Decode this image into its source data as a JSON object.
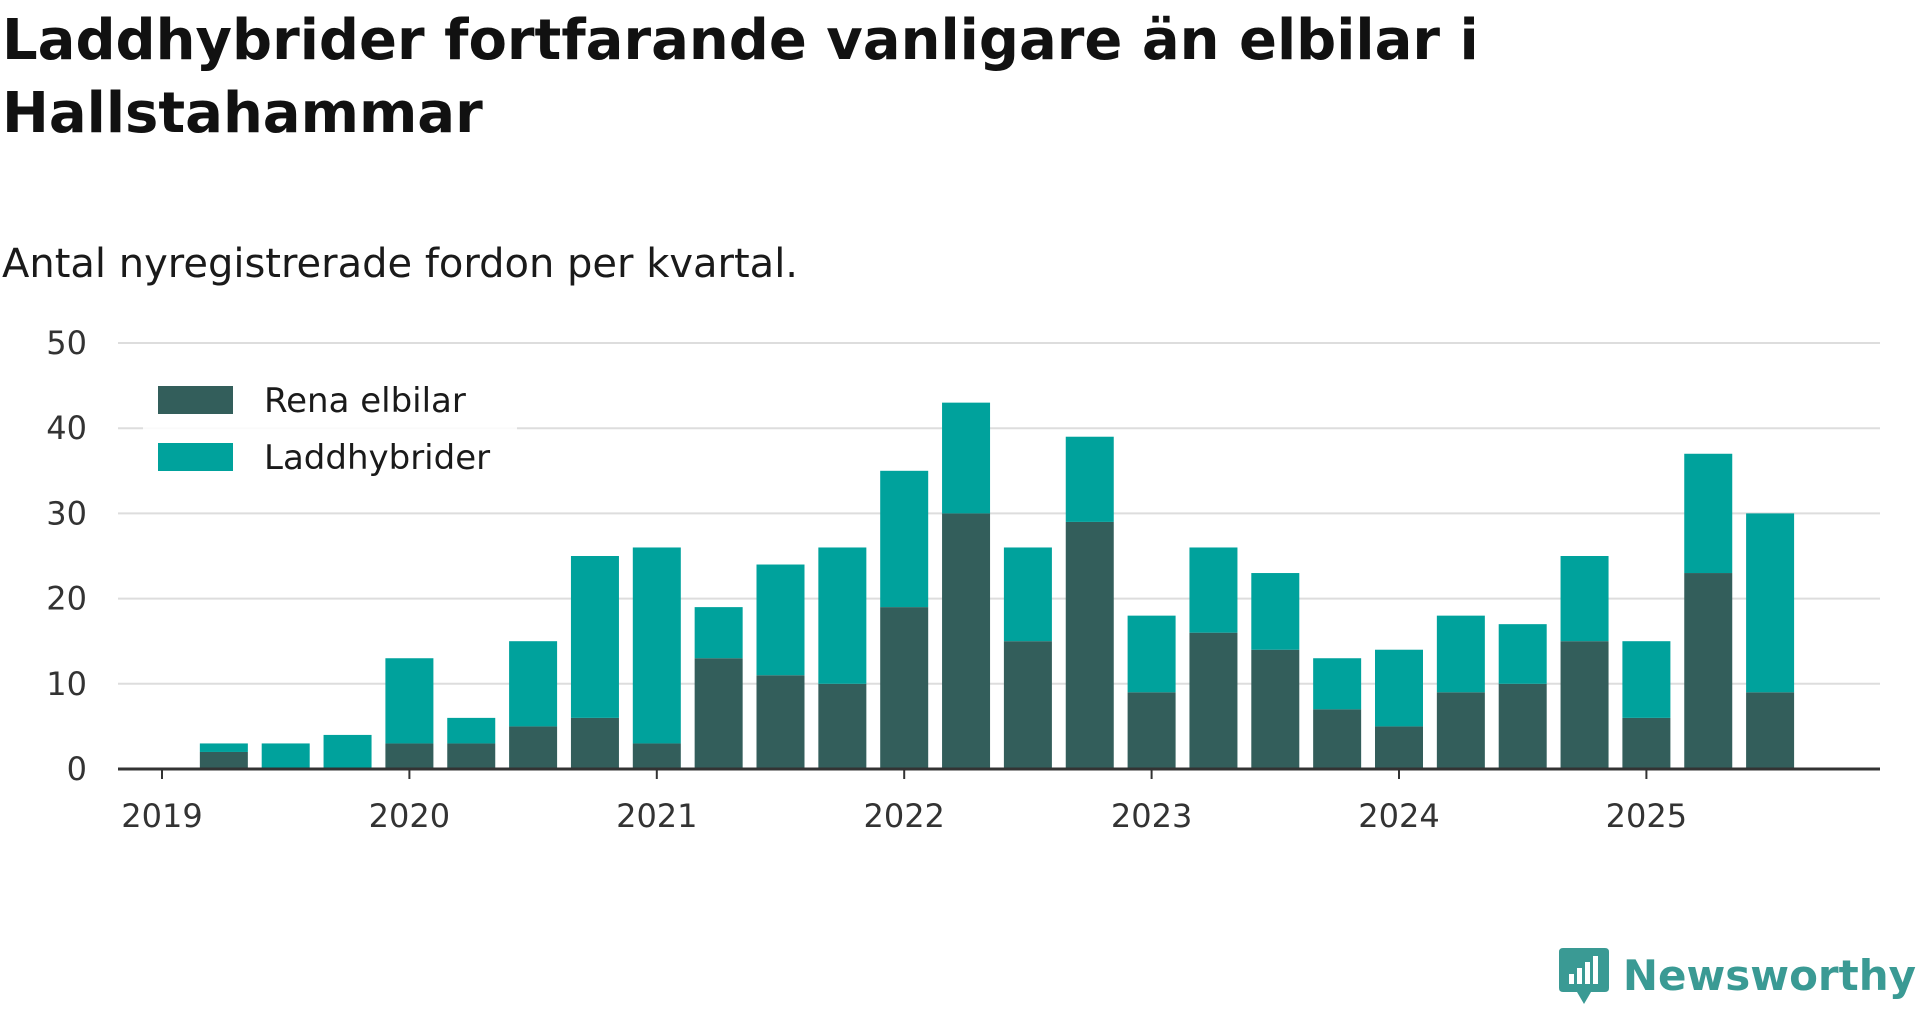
{
  "title": "Laddhybrider fortfarande vanligare än elbilar i Hallstahammar",
  "subtitle": "Antal nyregistrerade fordon per kvartal.",
  "brand": {
    "name": "Newsworthy",
    "icon": "newsworthy-logo-icon"
  },
  "colors": {
    "rena_elbilar": "#335e5b",
    "laddhybrider": "#00a29c",
    "grid": "#dddddd",
    "axis": "#333333",
    "brand": "#3a9a94"
  },
  "chart_data": {
    "type": "bar",
    "stacked": true,
    "title": "Laddhybrider fortfarande vanligare än elbilar i Hallstahammar",
    "subtitle": "Antal nyregistrerade fordon per kvartal.",
    "xlabel": "",
    "ylabel": "",
    "ylim": [
      0,
      50
    ],
    "yticks": [
      0,
      10,
      20,
      30,
      40,
      50
    ],
    "xlim": [
      2019,
      2025.95
    ],
    "xticks": [
      2019,
      2020,
      2021,
      2022,
      2023,
      2024,
      2025
    ],
    "grid": true,
    "legend_position": "top-left",
    "categories": [
      "2019 Q2",
      "2019 Q3",
      "2019 Q4",
      "2020 Q1",
      "2020 Q2",
      "2020 Q3",
      "2020 Q4",
      "2021 Q1",
      "2021 Q2",
      "2021 Q3",
      "2021 Q4",
      "2022 Q1",
      "2022 Q2",
      "2022 Q3",
      "2022 Q4",
      "2023 Q1",
      "2023 Q2",
      "2023 Q3",
      "2023 Q4",
      "2024 Q1",
      "2024 Q2",
      "2024 Q3",
      "2024 Q4",
      "2025 Q1",
      "2025 Q2",
      "2025 Q3"
    ],
    "x": [
      2019.25,
      2019.5,
      2019.75,
      2020.0,
      2020.25,
      2020.5,
      2020.75,
      2021.0,
      2021.25,
      2021.5,
      2021.75,
      2022.0,
      2022.25,
      2022.5,
      2022.75,
      2023.0,
      2023.25,
      2023.5,
      2023.75,
      2024.0,
      2024.25,
      2024.5,
      2024.75,
      2025.0,
      2025.25,
      2025.5
    ],
    "series": [
      {
        "name": "Rena elbilar",
        "color": "#335e5b",
        "values": [
          2,
          0,
          0,
          3,
          3,
          5,
          6,
          3,
          13,
          11,
          10,
          19,
          30,
          15,
          29,
          9,
          16,
          14,
          7,
          5,
          9,
          10,
          15,
          6,
          23,
          9
        ]
      },
      {
        "name": "Laddhybrider",
        "color": "#00a29c",
        "values": [
          1,
          3,
          4,
          10,
          3,
          10,
          19,
          23,
          6,
          13,
          16,
          16,
          13,
          11,
          10,
          9,
          10,
          9,
          6,
          9,
          9,
          7,
          10,
          9,
          14,
          21
        ]
      }
    ]
  }
}
